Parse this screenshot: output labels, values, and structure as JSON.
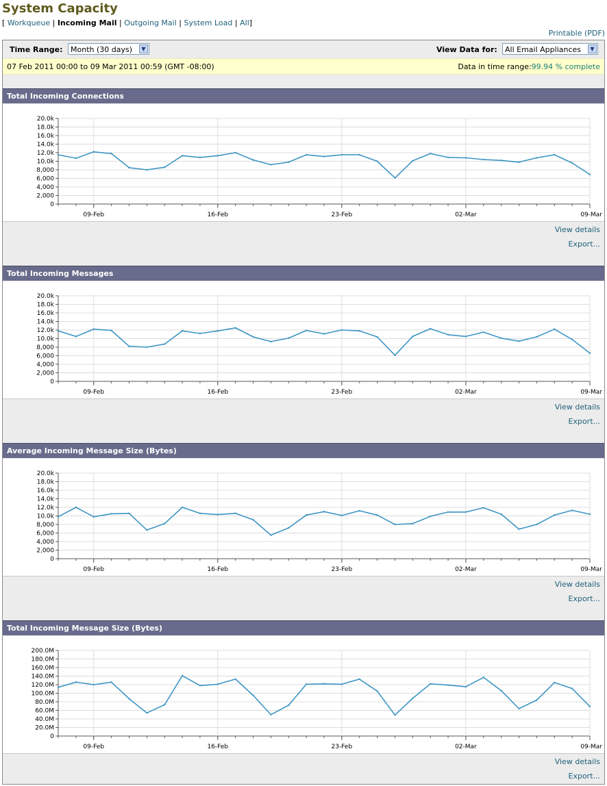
{
  "page": {
    "title": "System Capacity",
    "printable": "Printable (PDF)"
  },
  "subnav": {
    "open": "[",
    "close": "]",
    "sep": "|",
    "items": [
      "Workqueue",
      "Incoming Mail",
      "Outgoing Mail",
      "System Load",
      "All"
    ],
    "current": "Incoming Mail"
  },
  "filters": {
    "time_range_label": "Time Range:",
    "time_range_value": "Month (30 days)",
    "view_data_label": "View Data for:",
    "view_data_value": "All Email Appliances"
  },
  "range": {
    "text": "07 Feb 2011 00:00 to 09 Mar 2011 00:59 (GMT -08:00)",
    "complete_label": "Data in time range:",
    "complete_value": "99.94 % complete"
  },
  "links": {
    "view_details": "View details",
    "export": "Export..."
  },
  "colors": {
    "line": "#3e95c3",
    "header": "#696b8c",
    "title": "#5f5a1e",
    "link": "#1d5f7a"
  },
  "chart_data": [
    {
      "type": "line",
      "title": "Total Incoming Connections",
      "x_ticks": [
        "09-Feb",
        "16-Feb",
        "23-Feb",
        "02-Mar",
        "09-Mar"
      ],
      "x": [
        "07-Feb",
        "08-Feb",
        "09-Feb",
        "10-Feb",
        "11-Feb",
        "12-Feb",
        "13-Feb",
        "14-Feb",
        "15-Feb",
        "16-Feb",
        "17-Feb",
        "18-Feb",
        "19-Feb",
        "20-Feb",
        "21-Feb",
        "22-Feb",
        "23-Feb",
        "24-Feb",
        "25-Feb",
        "26-Feb",
        "27-Feb",
        "28-Feb",
        "01-Mar",
        "02-Mar",
        "03-Mar",
        "04-Mar",
        "05-Mar",
        "06-Mar",
        "07-Mar",
        "08-Mar",
        "09-Mar"
      ],
      "y_ticks": [
        "0",
        "2,000",
        "4,000",
        "6,000",
        "8,000",
        "10.0k",
        "12.0k",
        "14.0k",
        "16.0k",
        "18.0k",
        "20.0k"
      ],
      "ylim": [
        0,
        20000
      ],
      "values": [
        11500,
        10700,
        12200,
        11800,
        8500,
        8000,
        8600,
        11300,
        10900,
        11300,
        12000,
        10300,
        9200,
        9800,
        11500,
        11100,
        11500,
        11500,
        10000,
        6100,
        10100,
        11800,
        10900,
        10800,
        10400,
        10200,
        9800,
        10800,
        11500,
        9600,
        6900
      ]
    },
    {
      "type": "line",
      "title": "Total Incoming Messages",
      "x_ticks": [
        "09-Feb",
        "16-Feb",
        "23-Feb",
        "02-Mar",
        "09-Mar"
      ],
      "x": [
        "07-Feb",
        "08-Feb",
        "09-Feb",
        "10-Feb",
        "11-Feb",
        "12-Feb",
        "13-Feb",
        "14-Feb",
        "15-Feb",
        "16-Feb",
        "17-Feb",
        "18-Feb",
        "19-Feb",
        "20-Feb",
        "21-Feb",
        "22-Feb",
        "23-Feb",
        "24-Feb",
        "25-Feb",
        "26-Feb",
        "27-Feb",
        "28-Feb",
        "01-Mar",
        "02-Mar",
        "03-Mar",
        "04-Mar",
        "05-Mar",
        "06-Mar",
        "07-Mar",
        "08-Mar",
        "09-Mar"
      ],
      "y_ticks": [
        "0",
        "2,000",
        "4,000",
        "6,000",
        "8,000",
        "10.0k",
        "12.0k",
        "14.0k",
        "16.0k",
        "18.0k",
        "20.0k"
      ],
      "ylim": [
        0,
        20000
      ],
      "values": [
        11800,
        10500,
        12200,
        11900,
        8200,
        8000,
        8700,
        11800,
        11200,
        11800,
        12500,
        10400,
        9300,
        10100,
        11900,
        11100,
        12000,
        11800,
        10400,
        6100,
        10500,
        12300,
        10900,
        10500,
        11500,
        10100,
        9400,
        10400,
        12200,
        9800,
        6600
      ]
    },
    {
      "type": "line",
      "title": "Average Incoming Message Size (Bytes)",
      "x_ticks": [
        "09-Feb",
        "16-Feb",
        "23-Feb",
        "02-Mar",
        "09-Mar"
      ],
      "x": [
        "07-Feb",
        "08-Feb",
        "09-Feb",
        "10-Feb",
        "11-Feb",
        "12-Feb",
        "13-Feb",
        "14-Feb",
        "15-Feb",
        "16-Feb",
        "17-Feb",
        "18-Feb",
        "19-Feb",
        "20-Feb",
        "21-Feb",
        "22-Feb",
        "23-Feb",
        "24-Feb",
        "25-Feb",
        "26-Feb",
        "27-Feb",
        "28-Feb",
        "01-Mar",
        "02-Mar",
        "03-Mar",
        "04-Mar",
        "05-Mar",
        "06-Mar",
        "07-Mar",
        "08-Mar",
        "09-Mar"
      ],
      "y_ticks": [
        "0",
        "2,000",
        "4,000",
        "6,000",
        "8,000",
        "10.0k",
        "12.0k",
        "14.0k",
        "16.0k",
        "18.0k",
        "20.0k"
      ],
      "ylim": [
        0,
        20000
      ],
      "values": [
        9800,
        12000,
        9800,
        10500,
        10600,
        6700,
        8200,
        12000,
        10600,
        10300,
        10600,
        9100,
        5500,
        7200,
        10200,
        11000,
        10100,
        11200,
        10200,
        8000,
        8200,
        9900,
        10900,
        10900,
        11900,
        10400,
        6900,
        8000,
        10200,
        11300,
        10400
      ]
    },
    {
      "type": "line",
      "title": "Total Incoming Message Size (Bytes)",
      "x_ticks": [
        "09-Feb",
        "16-Feb",
        "23-Feb",
        "02-Mar",
        "09-Mar"
      ],
      "x": [
        "07-Feb",
        "08-Feb",
        "09-Feb",
        "10-Feb",
        "11-Feb",
        "12-Feb",
        "13-Feb",
        "14-Feb",
        "15-Feb",
        "16-Feb",
        "17-Feb",
        "18-Feb",
        "19-Feb",
        "20-Feb",
        "21-Feb",
        "22-Feb",
        "23-Feb",
        "24-Feb",
        "25-Feb",
        "26-Feb",
        "27-Feb",
        "28-Feb",
        "01-Mar",
        "02-Mar",
        "03-Mar",
        "04-Mar",
        "05-Mar",
        "06-Mar",
        "07-Mar",
        "08-Mar",
        "09-Mar"
      ],
      "y_ticks": [
        "0",
        "20.0M",
        "40.0M",
        "60.0M",
        "80.0M",
        "100.0M",
        "120.0M",
        "140.0M",
        "160.0M",
        "180.0M",
        "200.0M"
      ],
      "ylim": [
        0,
        200000000
      ],
      "values": [
        114000000,
        126000000,
        120000000,
        126000000,
        87000000,
        54000000,
        73000000,
        141000000,
        118000000,
        121000000,
        133000000,
        95000000,
        50000000,
        72000000,
        121000000,
        122000000,
        121000000,
        133000000,
        105000000,
        49000000,
        88000000,
        122000000,
        119000000,
        115000000,
        137000000,
        106000000,
        64000000,
        84000000,
        125000000,
        111000000,
        69000000
      ]
    }
  ]
}
